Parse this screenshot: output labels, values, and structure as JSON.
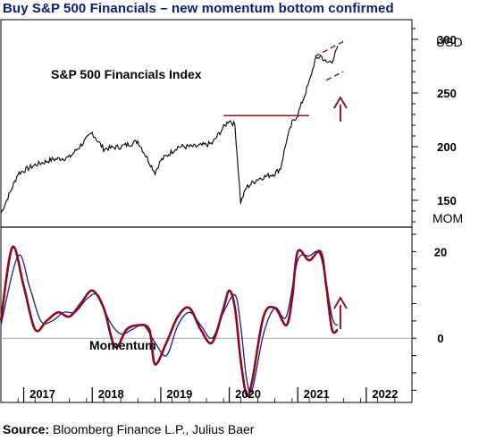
{
  "title": "Buy S&P 500 Financials – new momentum bottom confirmed",
  "source": {
    "label": "Source:",
    "text": "Bloomberg Finance L.P., Julius Baer"
  },
  "colors": {
    "title": "#0a1e6e",
    "price": "#000000",
    "momentum": "#8b0a1e",
    "signal": "#1a1a9e",
    "annotation": "#8b1a2e",
    "zero_line": "#aaaaaa"
  },
  "chart_data": [
    {
      "type": "line",
      "panel": "top",
      "label": "S&P 500 Financials Index",
      "ylabel": "USD",
      "ylim": [
        130,
        310
      ],
      "yticks": [
        150,
        200,
        250,
        300
      ],
      "xlim": [
        "2016-09",
        "2022-09"
      ],
      "xticks": [
        "2017",
        "2018",
        "2019",
        "2020",
        "2021",
        "2022"
      ],
      "series": [
        {
          "name": "S&P 500 Financials Index",
          "x": [
            "2016-09",
            "2016-11",
            "2016-12",
            "2017-03",
            "2017-06",
            "2017-09",
            "2017-12",
            "2018-01",
            "2018-02",
            "2018-03",
            "2018-06",
            "2018-09",
            "2018-12",
            "2019-01",
            "2019-04",
            "2019-07",
            "2019-10",
            "2019-12",
            "2020-01",
            "2020-02",
            "2020-03",
            "2020-04",
            "2020-06",
            "2020-09",
            "2020-10",
            "2020-11",
            "2020-12",
            "2021-01",
            "2021-02",
            "2021-03",
            "2021-04",
            "2021-05",
            "2021-06",
            "2021-07",
            "2021-08"
          ],
          "values": [
            138,
            162,
            175,
            183,
            188,
            190,
            207,
            213,
            205,
            198,
            200,
            205,
            176,
            187,
            200,
            200,
            203,
            218,
            225,
            220,
            148,
            162,
            170,
            175,
            180,
            205,
            222,
            230,
            245,
            260,
            280,
            285,
            278,
            280,
            292
          ]
        }
      ],
      "annotations": [
        {
          "kind": "horizontal_line",
          "value": 229,
          "from": "2019-12",
          "to": "2021-03"
        },
        {
          "kind": "trend_channel_upper",
          "from": [
            "2021-04",
            284
          ],
          "to": [
            "2021-09",
            298
          ]
        },
        {
          "kind": "trend_channel_lower",
          "from": [
            "2021-06",
            262
          ],
          "to": [
            "2021-09",
            270
          ]
        },
        {
          "kind": "up_arrow",
          "at": "2021-08"
        }
      ]
    },
    {
      "type": "line",
      "panel": "bottom",
      "label": "Momentum",
      "ylabel": "MOM",
      "ylim": [
        -14,
        24
      ],
      "yticks": [
        0,
        20
      ],
      "reference_line": 0,
      "series": [
        {
          "name": "momentum",
          "x": [
            "2016-09",
            "2016-11",
            "2017-01",
            "2017-03",
            "2017-05",
            "2017-07",
            "2017-09",
            "2017-11",
            "2018-01",
            "2018-03",
            "2018-05",
            "2018-07",
            "2018-09",
            "2018-11",
            "2018-12",
            "2019-02",
            "2019-04",
            "2019-06",
            "2019-08",
            "2019-10",
            "2019-12",
            "2020-01",
            "2020-02",
            "2020-03",
            "2020-04",
            "2020-05",
            "2020-07",
            "2020-09",
            "2020-11",
            "2020-12",
            "2021-01",
            "2021-03",
            "2021-05",
            "2021-06",
            "2021-07",
            "2021-08"
          ],
          "values": [
            4,
            21,
            12,
            2,
            4,
            6,
            5,
            8,
            11,
            7,
            -2,
            2,
            3,
            2,
            -6,
            -1,
            5,
            7,
            2,
            -1,
            7,
            11,
            7,
            -5,
            -13,
            -10,
            5,
            7,
            3,
            9,
            20,
            18,
            20,
            12,
            2,
            2
          ]
        },
        {
          "name": "signal",
          "x": [
            "2016-09",
            "2016-12",
            "2017-02",
            "2017-04",
            "2017-06",
            "2017-08",
            "2017-10",
            "2017-12",
            "2018-02",
            "2018-04",
            "2018-06",
            "2018-08",
            "2018-10",
            "2018-12",
            "2019-02",
            "2019-04",
            "2019-06",
            "2019-08",
            "2019-10",
            "2019-12",
            "2020-02",
            "2020-03",
            "2020-04",
            "2020-05",
            "2020-07",
            "2020-09",
            "2020-11",
            "2021-01",
            "2021-03",
            "2021-05",
            "2021-07",
            "2021-08"
          ],
          "values": [
            3,
            19,
            12,
            4,
            4,
            6,
            6,
            9,
            10,
            4,
            1,
            2,
            3,
            -1,
            -4,
            3,
            6,
            3,
            0,
            6,
            10,
            3,
            -9,
            -12,
            1,
            7,
            5,
            18,
            19,
            19,
            5,
            3
          ]
        }
      ],
      "annotations": [
        {
          "kind": "up_arrow",
          "at": "2021-08"
        }
      ]
    }
  ]
}
